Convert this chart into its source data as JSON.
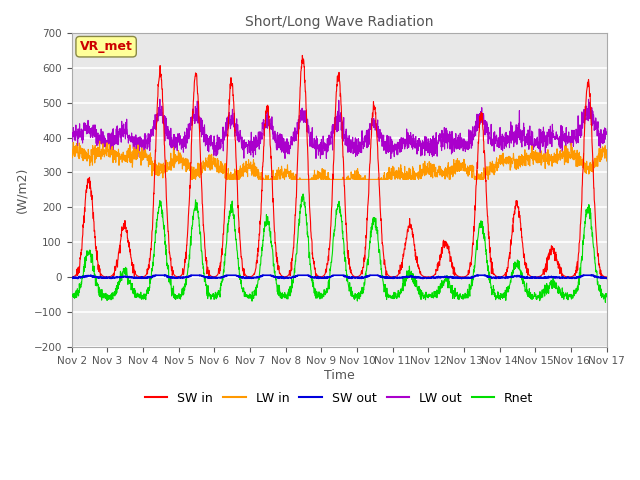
{
  "title": "Short/Long Wave Radiation",
  "xlabel": "Time",
  "ylabel": "(W/m2)",
  "ylim": [
    -200,
    700
  ],
  "yticks": [
    -200,
    -100,
    0,
    100,
    200,
    300,
    400,
    500,
    600,
    700
  ],
  "colors": {
    "SW_in": "#ff0000",
    "LW_in": "#ff9900",
    "SW_out": "#0000dd",
    "LW_out": "#aa00cc",
    "Rnet": "#00dd00"
  },
  "legend_label": "VR_met",
  "legend_label_color": "#cc0000",
  "legend_box_color": "#ffff99",
  "bg_color": "#e8e8e8",
  "grid_color": "#ffffff",
  "n_days": 15,
  "n_points_per_day": 144,
  "day_peaks_SW": [
    280,
    150,
    590,
    580,
    560,
    490,
    630,
    580,
    490,
    150,
    100,
    460,
    210,
    80,
    560
  ],
  "xtick_labels": [
    "Nov 2",
    "Nov 3",
    "Nov 4",
    "Nov 5",
    "Nov 6",
    "Nov 7",
    "Nov 8",
    "Nov 9",
    "Nov 10",
    "Nov 11",
    "Nov 12",
    "Nov 13",
    "Nov 14",
    "Nov 15",
    "Nov 16",
    "Nov 17"
  ]
}
